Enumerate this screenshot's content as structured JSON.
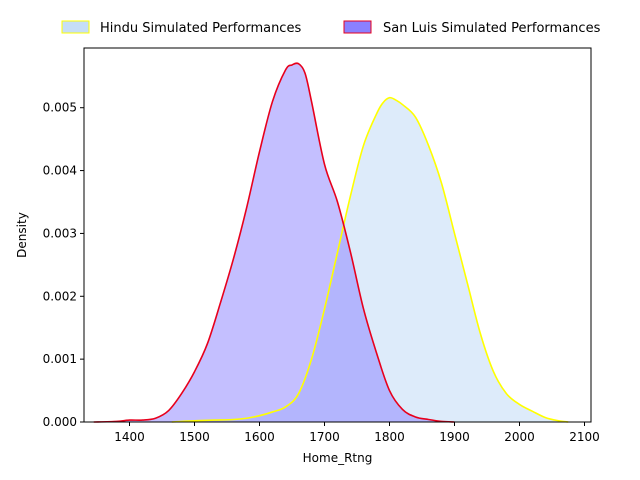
{
  "chart_data": {
    "type": "area",
    "title": "",
    "xlabel": "Home_Rtng",
    "ylabel": "Density",
    "xlim": [
      1330,
      2110
    ],
    "ylim": [
      0,
      0.00595
    ],
    "xticks": [
      1400,
      1500,
      1600,
      1700,
      1800,
      1900,
      2000,
      2100
    ],
    "xtick_labels": [
      "1400",
      "1500",
      "1600",
      "1700",
      "1800",
      "1900",
      "2000",
      "2100"
    ],
    "yticks": [
      0,
      0.001,
      0.002,
      0.003,
      0.004,
      0.005
    ],
    "ytick_labels": [
      "0.000",
      "0.001",
      "0.002",
      "0.003",
      "0.004",
      "0.005"
    ],
    "grid": false,
    "legend_position": "top, above plot",
    "series": [
      {
        "name": "Hindu Simulated Performances",
        "fill_color": "#c6def7",
        "line_color": "#ffff00",
        "x": [
          1465,
          1500,
          1530,
          1560,
          1580,
          1600,
          1620,
          1640,
          1660,
          1680,
          1700,
          1720,
          1740,
          1760,
          1780,
          1790,
          1800,
          1810,
          1820,
          1840,
          1860,
          1880,
          1900,
          1920,
          1940,
          1960,
          1980,
          2000,
          2020,
          2040,
          2060,
          2075
        ],
        "y": [
          0.0,
          2e-05,
          3e-05,
          4e-05,
          6e-05,
          0.0001,
          0.00016,
          0.00024,
          0.00045,
          0.001,
          0.0018,
          0.0027,
          0.0036,
          0.0044,
          0.0049,
          0.00508,
          0.00516,
          0.00512,
          0.00505,
          0.00485,
          0.0044,
          0.0038,
          0.003,
          0.0022,
          0.0014,
          0.0008,
          0.00045,
          0.00028,
          0.00017,
          7e-05,
          2e-05,
          0.0
        ]
      },
      {
        "name": "San Luis Simulated Performances",
        "fill_color": "#8a80ff",
        "line_color": "#e8001c",
        "x": [
          1345,
          1380,
          1400,
          1420,
          1440,
          1460,
          1480,
          1500,
          1520,
          1540,
          1560,
          1580,
          1600,
          1620,
          1640,
          1650,
          1660,
          1670,
          1680,
          1700,
          1720,
          1740,
          1760,
          1780,
          1800,
          1820,
          1840,
          1860,
          1880,
          1900
        ],
        "y": [
          0.0,
          1e-05,
          3e-05,
          3e-05,
          6e-05,
          0.00018,
          0.00045,
          0.0008,
          0.00125,
          0.0019,
          0.0026,
          0.0034,
          0.0043,
          0.0051,
          0.0056,
          0.00568,
          0.0057,
          0.00555,
          0.0051,
          0.0041,
          0.0035,
          0.0027,
          0.0018,
          0.0011,
          0.0005,
          0.0002,
          8e-05,
          4e-05,
          1e-05,
          0.0
        ]
      }
    ]
  }
}
